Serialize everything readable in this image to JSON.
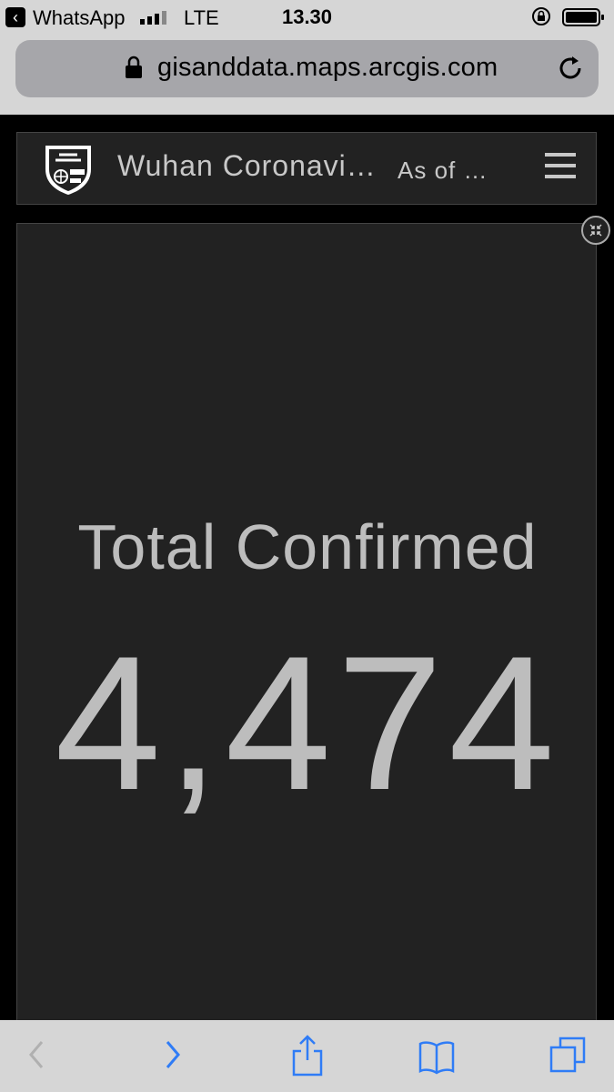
{
  "status_bar": {
    "back_app": "WhatsApp",
    "network": "LTE",
    "time": "13.30"
  },
  "browser": {
    "url": "gisanddata.maps.arcgis.com"
  },
  "dashboard": {
    "title": "Wuhan Coronavi…",
    "subtitle": "As of …",
    "metric_label": "Total Confirmed",
    "metric_value": "4,474"
  },
  "colors": {
    "chrome_bg": "#d6d6d6",
    "panel_bg": "#222222",
    "panel_text": "#bdbdbd",
    "link_blue": "#2f7cf6"
  }
}
